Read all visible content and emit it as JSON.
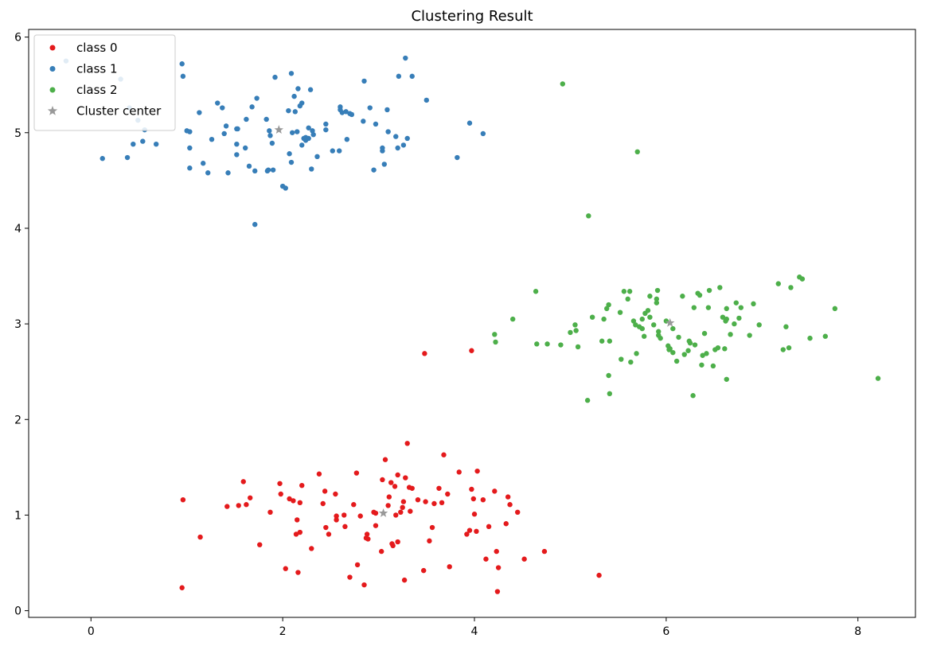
{
  "chart_data": {
    "type": "scatter",
    "title": "Clustering Result",
    "xlabel": "",
    "ylabel": "",
    "xlim": [
      -0.65,
      8.6
    ],
    "ylim": [
      -0.07,
      6.08
    ],
    "xticks": [
      0,
      2,
      4,
      6,
      8
    ],
    "yticks": [
      0,
      1,
      2,
      3,
      4,
      5,
      6
    ],
    "grid": false,
    "legend_position": "top-left",
    "series": [
      {
        "name": "class 0",
        "color": "#e41a1c",
        "marker": "circle",
        "points": [
          [
            0.96,
            1.16
          ],
          [
            1.14,
            0.77
          ],
          [
            0.95,
            0.24
          ],
          [
            1.42,
            1.09
          ],
          [
            1.54,
            1.1
          ],
          [
            1.59,
            1.35
          ],
          [
            1.62,
            1.11
          ],
          [
            1.66,
            1.18
          ],
          [
            1.76,
            0.69
          ],
          [
            1.87,
            1.03
          ],
          [
            1.97,
            1.33
          ],
          [
            1.98,
            1.22
          ],
          [
            2.03,
            0.44
          ],
          [
            2.07,
            1.17
          ],
          [
            2.11,
            1.15
          ],
          [
            2.14,
            0.8
          ],
          [
            2.15,
            0.95
          ],
          [
            2.16,
            0.4
          ],
          [
            2.18,
            0.82
          ],
          [
            2.18,
            1.13
          ],
          [
            2.2,
            1.31
          ],
          [
            2.3,
            0.65
          ],
          [
            2.38,
            1.43
          ],
          [
            2.42,
            1.12
          ],
          [
            2.44,
            1.25
          ],
          [
            2.45,
            0.87
          ],
          [
            2.48,
            0.8
          ],
          [
            2.55,
            1.22
          ],
          [
            2.56,
            0.99
          ],
          [
            2.56,
            0.95
          ],
          [
            2.64,
            1.0
          ],
          [
            2.65,
            0.88
          ],
          [
            2.7,
            0.35
          ],
          [
            2.74,
            1.11
          ],
          [
            2.77,
            1.44
          ],
          [
            2.78,
            0.48
          ],
          [
            2.81,
            0.99
          ],
          [
            2.85,
            0.27
          ],
          [
            2.88,
            0.8
          ],
          [
            2.89,
            0.75
          ],
          [
            2.95,
            1.03
          ],
          [
            2.97,
            0.89
          ],
          [
            2.97,
            1.02
          ],
          [
            3.03,
            0.62
          ],
          [
            3.04,
            1.37
          ],
          [
            3.07,
            1.58
          ],
          [
            3.1,
            1.1
          ],
          [
            3.11,
            1.19
          ],
          [
            3.13,
            1.34
          ],
          [
            3.14,
            0.7
          ],
          [
            3.15,
            0.68
          ],
          [
            3.17,
            1.3
          ],
          [
            3.18,
            1.0
          ],
          [
            3.2,
            1.42
          ],
          [
            3.23,
            1.03
          ],
          [
            3.25,
            1.08
          ],
          [
            3.26,
            1.14
          ],
          [
            3.28,
            1.39
          ],
          [
            3.3,
            1.75
          ],
          [
            3.32,
            1.29
          ],
          [
            3.33,
            1.04
          ],
          [
            3.35,
            1.28
          ],
          [
            3.41,
            1.16
          ],
          [
            3.47,
            0.42
          ],
          [
            3.49,
            1.14
          ],
          [
            3.53,
            0.73
          ],
          [
            3.56,
            0.87
          ],
          [
            3.58,
            1.12
          ],
          [
            3.63,
            1.28
          ],
          [
            3.66,
            1.13
          ],
          [
            3.68,
            1.63
          ],
          [
            3.72,
            1.22
          ],
          [
            3.74,
            0.46
          ],
          [
            3.84,
            1.45
          ],
          [
            3.92,
            0.8
          ],
          [
            3.97,
            1.27
          ],
          [
            3.99,
            1.17
          ],
          [
            4.0,
            1.01
          ],
          [
            4.02,
            0.83
          ],
          [
            4.03,
            1.46
          ],
          [
            3.95,
            0.84
          ],
          [
            4.09,
            1.16
          ],
          [
            4.12,
            0.54
          ],
          [
            4.15,
            0.88
          ],
          [
            4.21,
            1.25
          ],
          [
            4.23,
            0.62
          ],
          [
            4.25,
            0.45
          ],
          [
            4.24,
            0.2
          ],
          [
            4.33,
            0.91
          ],
          [
            4.35,
            1.19
          ],
          [
            4.37,
            1.11
          ],
          [
            4.45,
            1.03
          ],
          [
            4.52,
            0.54
          ],
          [
            4.73,
            0.62
          ],
          [
            5.3,
            0.37
          ],
          [
            3.48,
            2.69
          ],
          [
            3.97,
            2.72
          ],
          [
            3.2,
            0.72
          ],
          [
            3.27,
            0.32
          ],
          [
            2.87,
            0.76
          ]
        ]
      },
      {
        "name": "class 1",
        "color": "#377eb8",
        "marker": "circle",
        "points": [
          [
            -0.26,
            5.75
          ],
          [
            0.12,
            4.73
          ],
          [
            0.31,
            5.56
          ],
          [
            0.38,
            4.74
          ],
          [
            0.4,
            5.26
          ],
          [
            0.44,
            4.88
          ],
          [
            0.49,
            5.13
          ],
          [
            0.54,
            4.91
          ],
          [
            0.56,
            5.03
          ],
          [
            0.68,
            4.88
          ],
          [
            0.95,
            5.72
          ],
          [
            0.96,
            5.59
          ],
          [
            1.0,
            5.02
          ],
          [
            1.03,
            5.01
          ],
          [
            1.03,
            4.84
          ],
          [
            1.03,
            4.63
          ],
          [
            1.13,
            5.21
          ],
          [
            1.17,
            4.68
          ],
          [
            1.22,
            4.58
          ],
          [
            1.26,
            4.93
          ],
          [
            1.32,
            5.31
          ],
          [
            1.37,
            5.26
          ],
          [
            1.39,
            4.99
          ],
          [
            1.41,
            5.07
          ],
          [
            1.43,
            4.58
          ],
          [
            1.52,
            4.77
          ],
          [
            1.52,
            4.88
          ],
          [
            1.53,
            5.04
          ],
          [
            1.61,
            4.84
          ],
          [
            1.62,
            5.14
          ],
          [
            1.65,
            4.65
          ],
          [
            1.68,
            5.27
          ],
          [
            1.71,
            4.6
          ],
          [
            1.73,
            5.36
          ],
          [
            1.71,
            4.04
          ],
          [
            1.83,
            5.14
          ],
          [
            1.84,
            4.6
          ],
          [
            1.85,
            4.61
          ],
          [
            1.86,
            5.02
          ],
          [
            1.87,
            4.97
          ],
          [
            1.89,
            4.89
          ],
          [
            1.92,
            5.58
          ],
          [
            2.0,
            4.44
          ],
          [
            2.03,
            4.42
          ],
          [
            2.06,
            5.23
          ],
          [
            2.07,
            4.78
          ],
          [
            2.09,
            5.62
          ],
          [
            2.09,
            4.69
          ],
          [
            2.12,
            5.38
          ],
          [
            2.13,
            5.22
          ],
          [
            2.15,
            5.01
          ],
          [
            2.16,
            5.46
          ],
          [
            2.18,
            5.28
          ],
          [
            2.2,
            5.31
          ],
          [
            2.2,
            4.87
          ],
          [
            2.22,
            4.94
          ],
          [
            2.24,
            4.92
          ],
          [
            2.27,
            5.05
          ],
          [
            2.27,
            4.94
          ],
          [
            2.29,
            5.45
          ],
          [
            2.3,
            4.62
          ],
          [
            2.31,
            5.02
          ],
          [
            2.32,
            4.98
          ],
          [
            2.36,
            4.75
          ],
          [
            2.45,
            5.09
          ],
          [
            2.45,
            5.03
          ],
          [
            2.52,
            4.81
          ],
          [
            2.59,
            4.81
          ],
          [
            2.6,
            5.27
          ],
          [
            2.62,
            5.21
          ],
          [
            2.66,
            5.22
          ],
          [
            2.67,
            4.93
          ],
          [
            2.72,
            5.19
          ],
          [
            2.84,
            5.12
          ],
          [
            2.85,
            5.54
          ],
          [
            2.91,
            5.26
          ],
          [
            2.95,
            4.61
          ],
          [
            2.97,
            5.09
          ],
          [
            3.04,
            4.81
          ],
          [
            3.04,
            4.84
          ],
          [
            3.06,
            4.67
          ],
          [
            3.09,
            5.24
          ],
          [
            3.1,
            5.01
          ],
          [
            3.18,
            4.96
          ],
          [
            3.2,
            4.84
          ],
          [
            3.21,
            5.59
          ],
          [
            3.26,
            4.87
          ],
          [
            3.28,
            5.78
          ],
          [
            3.3,
            4.94
          ],
          [
            3.35,
            5.59
          ],
          [
            3.5,
            5.34
          ],
          [
            3.82,
            4.74
          ],
          [
            3.95,
            5.1
          ],
          [
            4.09,
            4.99
          ],
          [
            2.7,
            5.2
          ],
          [
            2.1,
            5.0
          ],
          [
            1.9,
            4.61
          ],
          [
            2.24,
            4.95
          ],
          [
            1.52,
            5.04
          ],
          [
            2.6,
            5.24
          ]
        ]
      },
      {
        "name": "class 2",
        "color": "#4daf4a",
        "marker": "circle",
        "points": [
          [
            4.21,
            2.89
          ],
          [
            4.22,
            2.81
          ],
          [
            4.4,
            3.05
          ],
          [
            4.64,
            3.34
          ],
          [
            4.65,
            2.79
          ],
          [
            4.76,
            2.79
          ],
          [
            4.9,
            2.78
          ],
          [
            4.92,
            5.51
          ],
          [
            5.0,
            2.91
          ],
          [
            5.05,
            2.99
          ],
          [
            5.06,
            2.93
          ],
          [
            5.08,
            2.76
          ],
          [
            5.18,
            2.2
          ],
          [
            5.19,
            4.13
          ],
          [
            5.23,
            3.07
          ],
          [
            5.33,
            2.82
          ],
          [
            5.35,
            3.05
          ],
          [
            5.38,
            3.16
          ],
          [
            5.4,
            3.2
          ],
          [
            5.4,
            2.46
          ],
          [
            5.41,
            2.27
          ],
          [
            5.41,
            2.82
          ],
          [
            5.52,
            3.12
          ],
          [
            5.53,
            2.63
          ],
          [
            5.56,
            3.34
          ],
          [
            5.6,
            3.26
          ],
          [
            5.62,
            3.34
          ],
          [
            5.63,
            2.6
          ],
          [
            5.66,
            3.03
          ],
          [
            5.68,
            2.99
          ],
          [
            5.69,
            2.69
          ],
          [
            5.7,
            4.8
          ],
          [
            5.72,
            2.97
          ],
          [
            5.75,
            2.95
          ],
          [
            5.75,
            3.05
          ],
          [
            5.77,
            2.87
          ],
          [
            5.78,
            3.11
          ],
          [
            5.81,
            3.14
          ],
          [
            5.83,
            3.29
          ],
          [
            5.83,
            3.07
          ],
          [
            5.87,
            2.99
          ],
          [
            5.9,
            3.26
          ],
          [
            5.9,
            3.22
          ],
          [
            5.91,
            3.35
          ],
          [
            5.92,
            2.88
          ],
          [
            5.92,
            2.92
          ],
          [
            5.94,
            2.85
          ],
          [
            6.0,
            3.03
          ],
          [
            6.02,
            2.77
          ],
          [
            6.03,
            2.73
          ],
          [
            6.04,
            2.74
          ],
          [
            6.07,
            2.7
          ],
          [
            6.07,
            2.95
          ],
          [
            6.11,
            2.61
          ],
          [
            6.13,
            2.86
          ],
          [
            6.17,
            3.29
          ],
          [
            6.19,
            2.68
          ],
          [
            6.23,
            2.72
          ],
          [
            6.24,
            2.82
          ],
          [
            6.25,
            2.8
          ],
          [
            6.28,
            2.25
          ],
          [
            6.29,
            3.17
          ],
          [
            6.3,
            2.78
          ],
          [
            6.33,
            3.32
          ],
          [
            6.35,
            3.3
          ],
          [
            6.37,
            2.57
          ],
          [
            6.38,
            2.67
          ],
          [
            6.4,
            2.9
          ],
          [
            6.42,
            2.69
          ],
          [
            6.44,
            3.17
          ],
          [
            6.45,
            3.35
          ],
          [
            6.49,
            2.56
          ],
          [
            6.51,
            2.73
          ],
          [
            6.54,
            2.75
          ],
          [
            6.56,
            3.38
          ],
          [
            6.59,
            3.07
          ],
          [
            6.61,
            2.74
          ],
          [
            6.62,
            3.03
          ],
          [
            6.63,
            3.05
          ],
          [
            6.63,
            3.16
          ],
          [
            6.63,
            2.42
          ],
          [
            6.67,
            2.89
          ],
          [
            6.71,
            3.0
          ],
          [
            6.73,
            3.22
          ],
          [
            6.76,
            3.06
          ],
          [
            6.78,
            3.17
          ],
          [
            6.87,
            2.88
          ],
          [
            6.91,
            3.21
          ],
          [
            6.97,
            2.99
          ],
          [
            7.17,
            3.42
          ],
          [
            7.22,
            2.73
          ],
          [
            7.25,
            2.97
          ],
          [
            7.28,
            2.75
          ],
          [
            7.3,
            3.38
          ],
          [
            7.39,
            3.49
          ],
          [
            7.42,
            3.47
          ],
          [
            7.5,
            2.85
          ],
          [
            7.66,
            2.87
          ],
          [
            7.76,
            3.16
          ],
          [
            8.21,
            2.43
          ]
        ]
      },
      {
        "name": "Cluster center",
        "color": "#999999",
        "marker": "star",
        "points": [
          [
            3.05,
            1.02
          ],
          [
            1.96,
            5.03
          ],
          [
            6.04,
            3.01
          ]
        ]
      }
    ]
  }
}
